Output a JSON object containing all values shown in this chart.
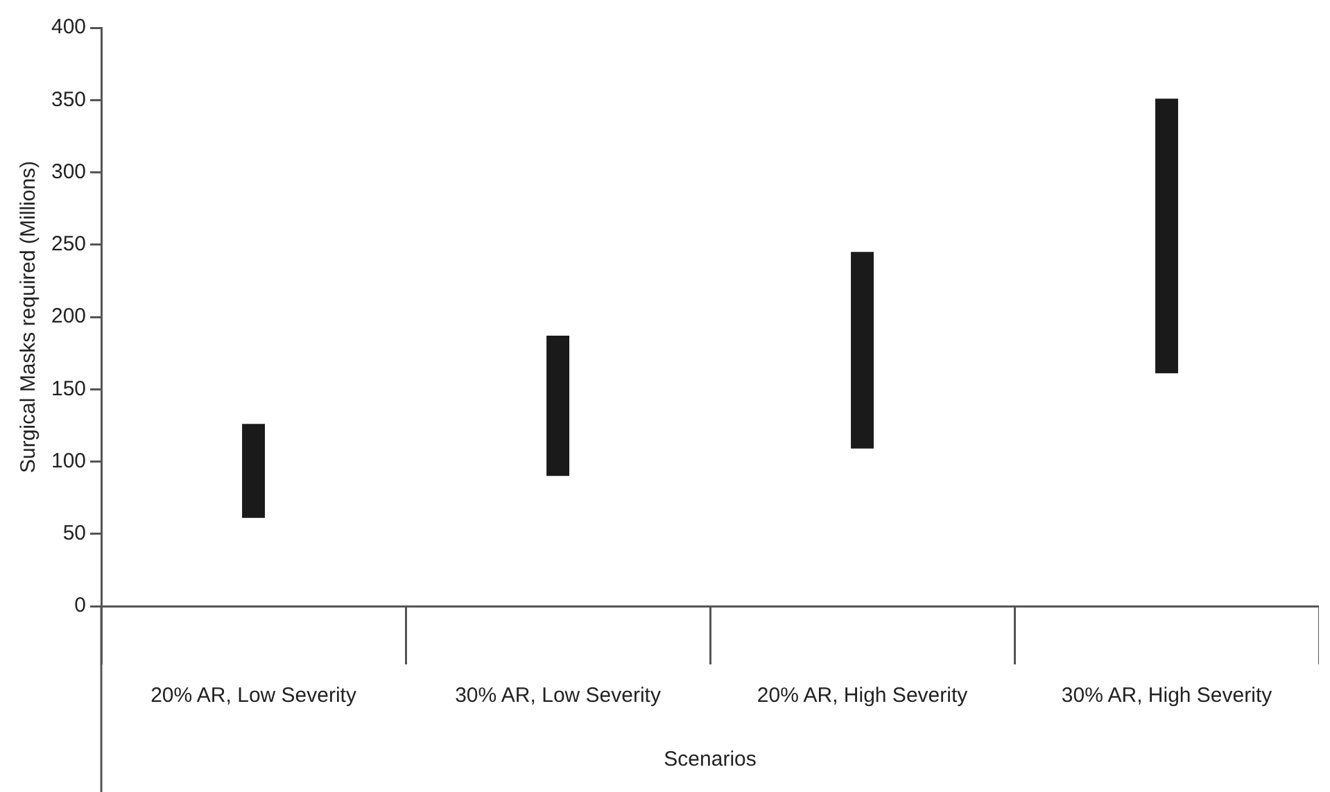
{
  "chart_data": {
    "type": "bar",
    "xlabel": "Scenarios",
    "ylabel": "Surgical Masks required (Millions)",
    "categories": [
      "20% AR, Low Severity",
      "30% AR, Low Severity",
      "20% AR, High Severity",
      "30% AR, High Severity"
    ],
    "base": [
      61,
      90,
      109,
      161
    ],
    "values": [
      65,
      97,
      136,
      190
    ],
    "color": "#1a1a1a",
    "ylim": [
      0,
      400
    ],
    "yticks": [
      0,
      50,
      100,
      150,
      200,
      250,
      300,
      350,
      400
    ],
    "grid": false,
    "legend": false
  }
}
